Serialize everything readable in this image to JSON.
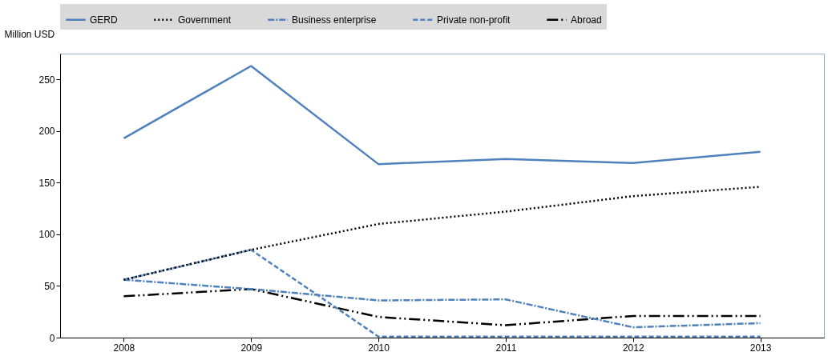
{
  "chart_data": {
    "type": "line",
    "ylabel": "Million USD",
    "categories": [
      "2008",
      "2009",
      "2010",
      "2011",
      "2012",
      "2013"
    ],
    "ylim": [
      0,
      275
    ],
    "yticks": [
      0,
      50,
      100,
      150,
      200,
      250
    ],
    "grid": false,
    "legend": "top",
    "marker": "none",
    "series": [
      {
        "name": "GERD",
        "color": "#4f81bd",
        "line_style": "solid",
        "values": [
          193,
          263,
          168,
          173,
          169,
          180
        ]
      },
      {
        "name": "Government",
        "color": "#000000",
        "line_style": "dotted",
        "values": [
          56,
          85,
          110,
          122,
          137,
          146
        ]
      },
      {
        "name": "Business enterprise",
        "color": "#4f81bd",
        "line_style": "dashdot",
        "values": [
          56,
          47,
          36,
          37,
          10,
          14
        ]
      },
      {
        "name": "Private non-profit",
        "color": "#4f81bd",
        "line_style": "dashed",
        "values": [
          56,
          85,
          1,
          1,
          1,
          1
        ]
      },
      {
        "name": "Abroad",
        "color": "#000000",
        "line_style": "longdashdot",
        "values": [
          40,
          47,
          20,
          12,
          21,
          21
        ]
      }
    ]
  }
}
